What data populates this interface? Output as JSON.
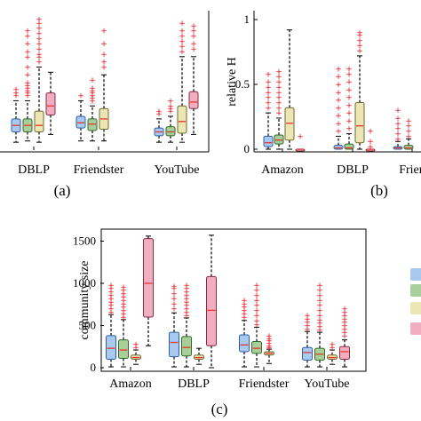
{
  "colors": {
    "series": [
      "#a9c9ee",
      "#a8cf9a",
      "#ece5b4",
      "#f2aec1"
    ],
    "series_edge": [
      "#2c5fa8",
      "#2f6b2a",
      "#6b6a2e",
      "#8a2a45"
    ],
    "median": "#e8342c",
    "outlier": "#e8101a",
    "whisker": "#000000"
  },
  "panels": {
    "a": {
      "caption": "(a)"
    },
    "b": {
      "caption": "(b)",
      "ylabel": "relative H"
    },
    "c": {
      "caption": "(c)",
      "ylabel": "community size"
    }
  },
  "chart_data": [
    {
      "panel": "a",
      "type": "box",
      "title": "",
      "xlabel": "",
      "ylabel": "",
      "categories": [
        "DBLP",
        "Friendster",
        "YouTube"
      ],
      "ylim": [
        0,
        1.0
      ],
      "yticks": [],
      "series": [
        {
          "boxes": [
            {
              "min": 0.04,
              "q1": 0.12,
              "median": 0.17,
              "q3": 0.22,
              "max": 0.36,
              "outliers": [
                0.4,
                0.42,
                0.45
              ]
            },
            {
              "min": 0.05,
              "q1": 0.15,
              "median": 0.19,
              "q3": 0.24,
              "max": 0.36,
              "outliers": [
                0.4
              ]
            },
            {
              "min": 0.04,
              "q1": 0.09,
              "median": 0.12,
              "q3": 0.15,
              "max": 0.22,
              "outliers": [
                0.26,
                0.28
              ]
            }
          ]
        },
        {
          "boxes": [
            {
              "min": 0.05,
              "q1": 0.12,
              "median": 0.17,
              "q3": 0.22,
              "max": 0.36,
              "outliers": [
                0.4,
                0.42,
                0.44,
                0.46,
                0.48,
                0.5,
                0.56,
                0.62,
                0.7,
                0.74,
                0.8,
                0.86,
                0.9
              ]
            },
            {
              "min": 0.05,
              "q1": 0.13,
              "median": 0.18,
              "q3": 0.22,
              "max": 0.32,
              "outliers": [
                0.36,
                0.38,
                0.4,
                0.42,
                0.44,
                0.46,
                0.52
              ]
            },
            {
              "min": 0.04,
              "q1": 0.09,
              "median": 0.12,
              "q3": 0.16,
              "max": 0.24,
              "outliers": [
                0.28,
                0.3,
                0.32,
                0.36
              ]
            }
          ]
        },
        {
          "boxes": [
            {
              "min": 0.04,
              "q1": 0.12,
              "median": 0.17,
              "q3": 0.28,
              "max": 0.62,
              "outliers": [
                0.66,
                0.7,
                0.72,
                0.76,
                0.8,
                0.84,
                0.88,
                0.92,
                0.96,
                0.99
              ]
            },
            {
              "min": 0.05,
              "q1": 0.14,
              "median": 0.22,
              "q3": 0.3,
              "max": 0.56,
              "outliers": [
                0.62,
                0.66,
                0.72,
                0.8,
                0.9
              ]
            },
            {
              "min": 0.04,
              "q1": 0.11,
              "median": 0.2,
              "q3": 0.32,
              "max": 0.7,
              "outliers": [
                0.74,
                0.78,
                0.82,
                0.86,
                0.9,
                0.96
              ]
            }
          ]
        },
        {
          "boxes": [
            {
              "min": 0.1,
              "q1": 0.25,
              "median": 0.32,
              "q3": 0.42,
              "max": 0.58,
              "outliers": []
            },
            null,
            {
              "min": 0.1,
              "q1": 0.3,
              "median": 0.35,
              "q3": 0.43,
              "max": 0.7,
              "outliers": [
                0.76,
                0.8,
                0.86,
                0.9,
                0.94
              ]
            }
          ]
        }
      ]
    },
    {
      "panel": "b",
      "type": "box",
      "title": "",
      "xlabel": "",
      "ylabel": "relative H",
      "categories": [
        "Amazon",
        "DBLP",
        "Frien"
      ],
      "ylim": [
        0,
        1.0
      ],
      "yticks": [
        0,
        0.5,
        1
      ],
      "ytick_labels": [
        "0",
        "0.5",
        "1"
      ],
      "series": [
        {
          "boxes": [
            {
              "min": 0.0,
              "q1": 0.02,
              "median": 0.05,
              "q3": 0.1,
              "max": 0.28,
              "outliers": [
                0.32,
                0.36,
                0.4,
                0.44,
                0.48,
                0.52,
                0.58
              ]
            },
            {
              "min": 0.0,
              "q1": 0.0,
              "median": 0.01,
              "q3": 0.03,
              "max": 0.1,
              "outliers": [
                0.14,
                0.2,
                0.26,
                0.32,
                0.38,
                0.44,
                0.5,
                0.56,
                0.62
              ]
            },
            {
              "min": 0.0,
              "q1": 0.0,
              "median": 0.01,
              "q3": 0.02,
              "max": 0.06,
              "outliers": [
                0.08,
                0.12,
                0.16,
                0.2,
                0.24,
                0.3
              ]
            }
          ]
        },
        {
          "boxes": [
            {
              "min": 0.0,
              "q1": 0.04,
              "median": 0.07,
              "q3": 0.11,
              "max": 0.24,
              "outliers": [
                0.28,
                0.32,
                0.36,
                0.4,
                0.44,
                0.48,
                0.52,
                0.56,
                0.6
              ]
            },
            {
              "min": 0.0,
              "q1": 0.0,
              "median": 0.01,
              "q3": 0.04,
              "max": 0.12,
              "outliers": [
                0.16,
                0.22,
                0.28,
                0.34,
                0.4,
                0.46,
                0.52,
                0.58,
                0.62
              ]
            },
            {
              "min": 0.0,
              "q1": 0.0,
              "median": 0.01,
              "q3": 0.03,
              "max": 0.08,
              "outliers": [
                0.1,
                0.14,
                0.18,
                0.22
              ]
            }
          ]
        },
        {
          "boxes": [
            {
              "min": 0.0,
              "q1": 0.07,
              "median": 0.2,
              "q3": 0.32,
              "max": 0.92,
              "outliers": []
            },
            {
              "min": 0.0,
              "q1": 0.05,
              "median": 0.18,
              "q3": 0.36,
              "max": 0.72,
              "outliers": [
                0.76,
                0.8,
                0.84,
                0.88,
                0.9
              ]
            },
            null
          ]
        },
        {
          "boxes": [
            {
              "min": 0.0,
              "q1": 0.0,
              "median": 0.0,
              "q3": 0.0,
              "max": 0.0,
              "outliers": [
                0.1
              ]
            },
            {
              "min": 0.0,
              "q1": 0.0,
              "median": 0.0,
              "q3": 0.0,
              "max": 0.0,
              "outliers": [
                0.02,
                0.06,
                0.14
              ]
            },
            null
          ]
        }
      ]
    },
    {
      "panel": "c",
      "type": "box",
      "title": "",
      "xlabel": "",
      "ylabel": "community size",
      "categories": [
        "Amazon",
        "DBLP",
        "Friendster",
        "YouTube"
      ],
      "ylim": [
        0,
        1600
      ],
      "yticks": [
        0,
        500,
        1000,
        1500
      ],
      "ytick_labels": [
        "0",
        "500",
        "1000",
        "1500"
      ],
      "series": [
        {
          "boxes": [
            {
              "min": 10,
              "q1": 100,
              "median": 230,
              "q3": 380,
              "max": 630,
              "outliers": [
                660,
                700,
                740,
                780,
                820,
                860,
                900,
                940,
                980
              ]
            },
            {
              "min": 10,
              "q1": 130,
              "median": 300,
              "q3": 420,
              "max": 650,
              "outliers": [
                700,
                760,
                820,
                880,
                940,
                970
              ]
            },
            {
              "min": 10,
              "q1": 190,
              "median": 270,
              "q3": 390,
              "max": 560,
              "outliers": [
                600,
                640,
                680,
                720,
                760,
                800
              ]
            },
            {
              "min": 10,
              "q1": 90,
              "median": 180,
              "q3": 240,
              "max": 430,
              "outliers": [
                460,
                500,
                540,
                580,
                620
              ]
            }
          ]
        },
        {
          "boxes": [
            {
              "min": 10,
              "q1": 110,
              "median": 210,
              "q3": 330,
              "max": 570,
              "outliers": [
                600,
                640,
                680,
                720,
                760,
                800,
                840,
                880,
                920,
                960
              ]
            },
            {
              "min": 10,
              "q1": 140,
              "median": 240,
              "q3": 370,
              "max": 590,
              "outliers": [
                620,
                660,
                700,
                740,
                780,
                820,
                860,
                900,
                940,
                980
              ]
            },
            {
              "min": 10,
              "q1": 170,
              "median": 230,
              "q3": 310,
              "max": 480,
              "outliers": [
                510,
                560,
                620,
                680,
                740,
                800,
                860,
                920,
                980
              ]
            },
            {
              "min": 10,
              "q1": 90,
              "median": 160,
              "q3": 230,
              "max": 420,
              "outliers": [
                450,
                490,
                530,
                570,
                620,
                680,
                740,
                800,
                860,
                920,
                980
              ]
            }
          ]
        },
        {
          "boxes": [
            {
              "min": 40,
              "q1": 100,
              "median": 120,
              "q3": 150,
              "max": 210,
              "outliers": [
                240,
                280
              ]
            },
            {
              "min": 40,
              "q1": 100,
              "median": 120,
              "q3": 150,
              "max": 230,
              "outliers": []
            },
            {
              "min": 50,
              "q1": 150,
              "median": 170,
              "q3": 190,
              "max": 220,
              "outliers": [
                240,
                260,
                290,
                320,
                350,
                380
              ]
            },
            {
              "min": 40,
              "q1": 100,
              "median": 120,
              "q3": 150,
              "max": 210,
              "outliers": [
                240,
                280
              ]
            }
          ]
        },
        {
          "boxes": [
            {
              "min": 260,
              "q1": 600,
              "median": 1000,
              "q3": 1530,
              "max": 1560,
              "outliers": []
            },
            {
              "min": 0,
              "q1": 260,
              "median": 680,
              "q3": 1080,
              "max": 1570,
              "outliers": []
            },
            null,
            {
              "min": 10,
              "q1": 100,
              "median": 190,
              "q3": 250,
              "max": 330,
              "outliers": [
                380,
                420,
                460,
                500,
                540,
                580,
                620,
                660,
                700
              ]
            }
          ]
        }
      ]
    }
  ]
}
